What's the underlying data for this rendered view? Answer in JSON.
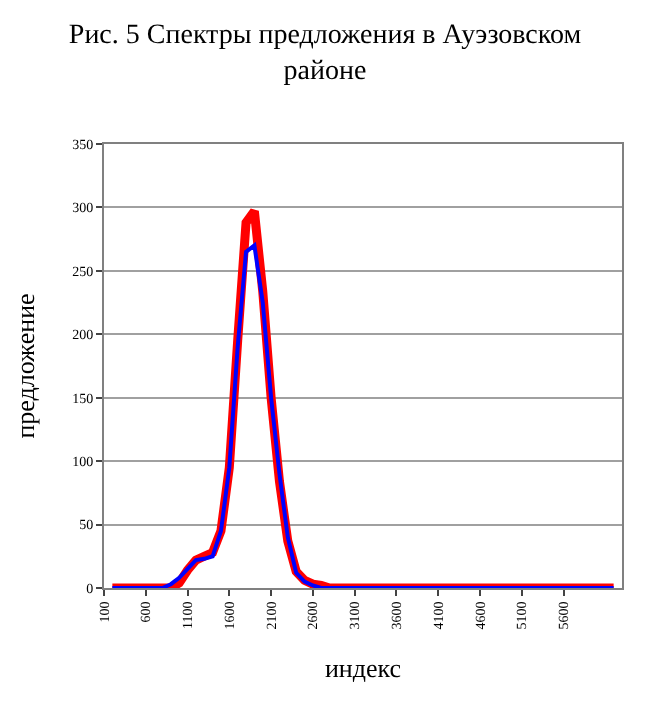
{
  "chart_data": {
    "type": "line",
    "title": "Рис. 5 Спектры предложения в Ауэзовском районе",
    "xlabel": "индекс",
    "ylabel": "предложение",
    "xlim": [
      100,
      6300
    ],
    "xticks": [
      100,
      600,
      1100,
      1600,
      2100,
      2600,
      3100,
      3600,
      4100,
      4600,
      5100,
      5600
    ],
    "ylim": [
      0,
      350
    ],
    "yticks": [
      0,
      50,
      100,
      150,
      200,
      250,
      300,
      350
    ],
    "grid": "y",
    "legend": false,
    "marker": "none",
    "line_style": "solid",
    "series": [
      {
        "color": "#0000ff",
        "x": [
          200,
          700,
          800,
          900,
          1000,
          1100,
          1200,
          1300,
          1400,
          1500,
          1600,
          1700,
          1800,
          1900,
          2000,
          2100,
          2200,
          2300,
          2400,
          2500,
          2600,
          2700,
          6200
        ],
        "values": [
          0,
          0,
          0,
          3,
          8,
          15,
          22,
          23,
          25,
          45,
          95,
          190,
          265,
          270,
          225,
          150,
          90,
          40,
          12,
          5,
          2,
          0,
          0
        ]
      },
      {
        "color": "#ff0000",
        "x": [
          200,
          800,
          900,
          1000,
          1100,
          1200,
          1300,
          1400,
          1500,
          1600,
          1700,
          1800,
          1900,
          2000,
          2100,
          2200,
          2300,
          2400,
          2500,
          2600,
          2700,
          2800,
          6200
        ],
        "values": [
          0,
          0,
          0,
          4,
          14,
          22,
          25,
          28,
          45,
          95,
          195,
          288,
          297,
          234,
          150,
          84,
          37,
          13,
          6,
          3,
          2,
          0,
          0
        ]
      }
    ]
  }
}
